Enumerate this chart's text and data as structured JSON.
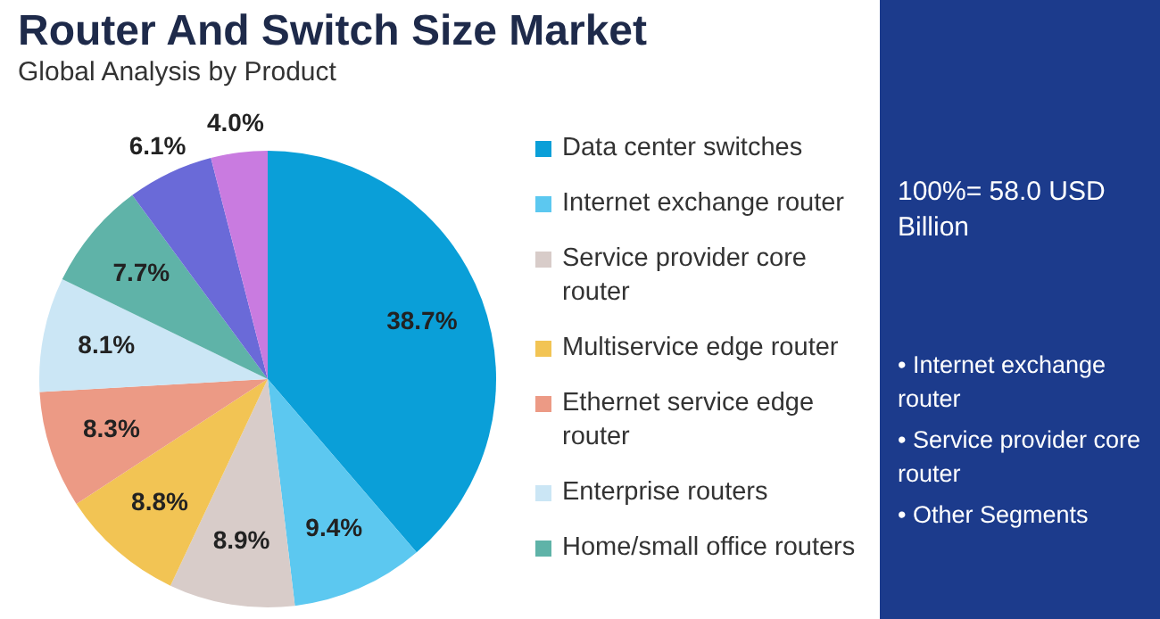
{
  "chart_data": {
    "type": "pie",
    "title": "Router And Switch Size Market",
    "subtitle": "Global Analysis by Product",
    "categories": [
      "Data center switches",
      "Internet exchange router",
      "Service provider core router",
      "Multiservice edge router",
      "Ethernet service edge router",
      "Enterprise routers",
      "Home/small office routers",
      null,
      null
    ],
    "values": [
      38.7,
      9.4,
      8.9,
      8.8,
      8.3,
      8.1,
      7.7,
      6.1,
      4.0
    ],
    "value_labels": [
      "38.7%",
      "9.4%",
      "8.9%",
      "8.8%",
      "8.3%",
      "8.1%",
      "7.7%",
      "6.1%",
      "4.0%"
    ],
    "colors": [
      "#0a9fd8",
      "#5cc8f0",
      "#d8ccc9",
      "#f2c454",
      "#ec9a85",
      "#cbe6f5",
      "#5fb3a8",
      "#6a6ad8",
      "#c97be0"
    ],
    "legend": "right",
    "annotations": [
      "100%= 58.0 USD Billion",
      "• Internet exchange router",
      "• Service provider core router",
      "• Other Segments"
    ]
  }
}
